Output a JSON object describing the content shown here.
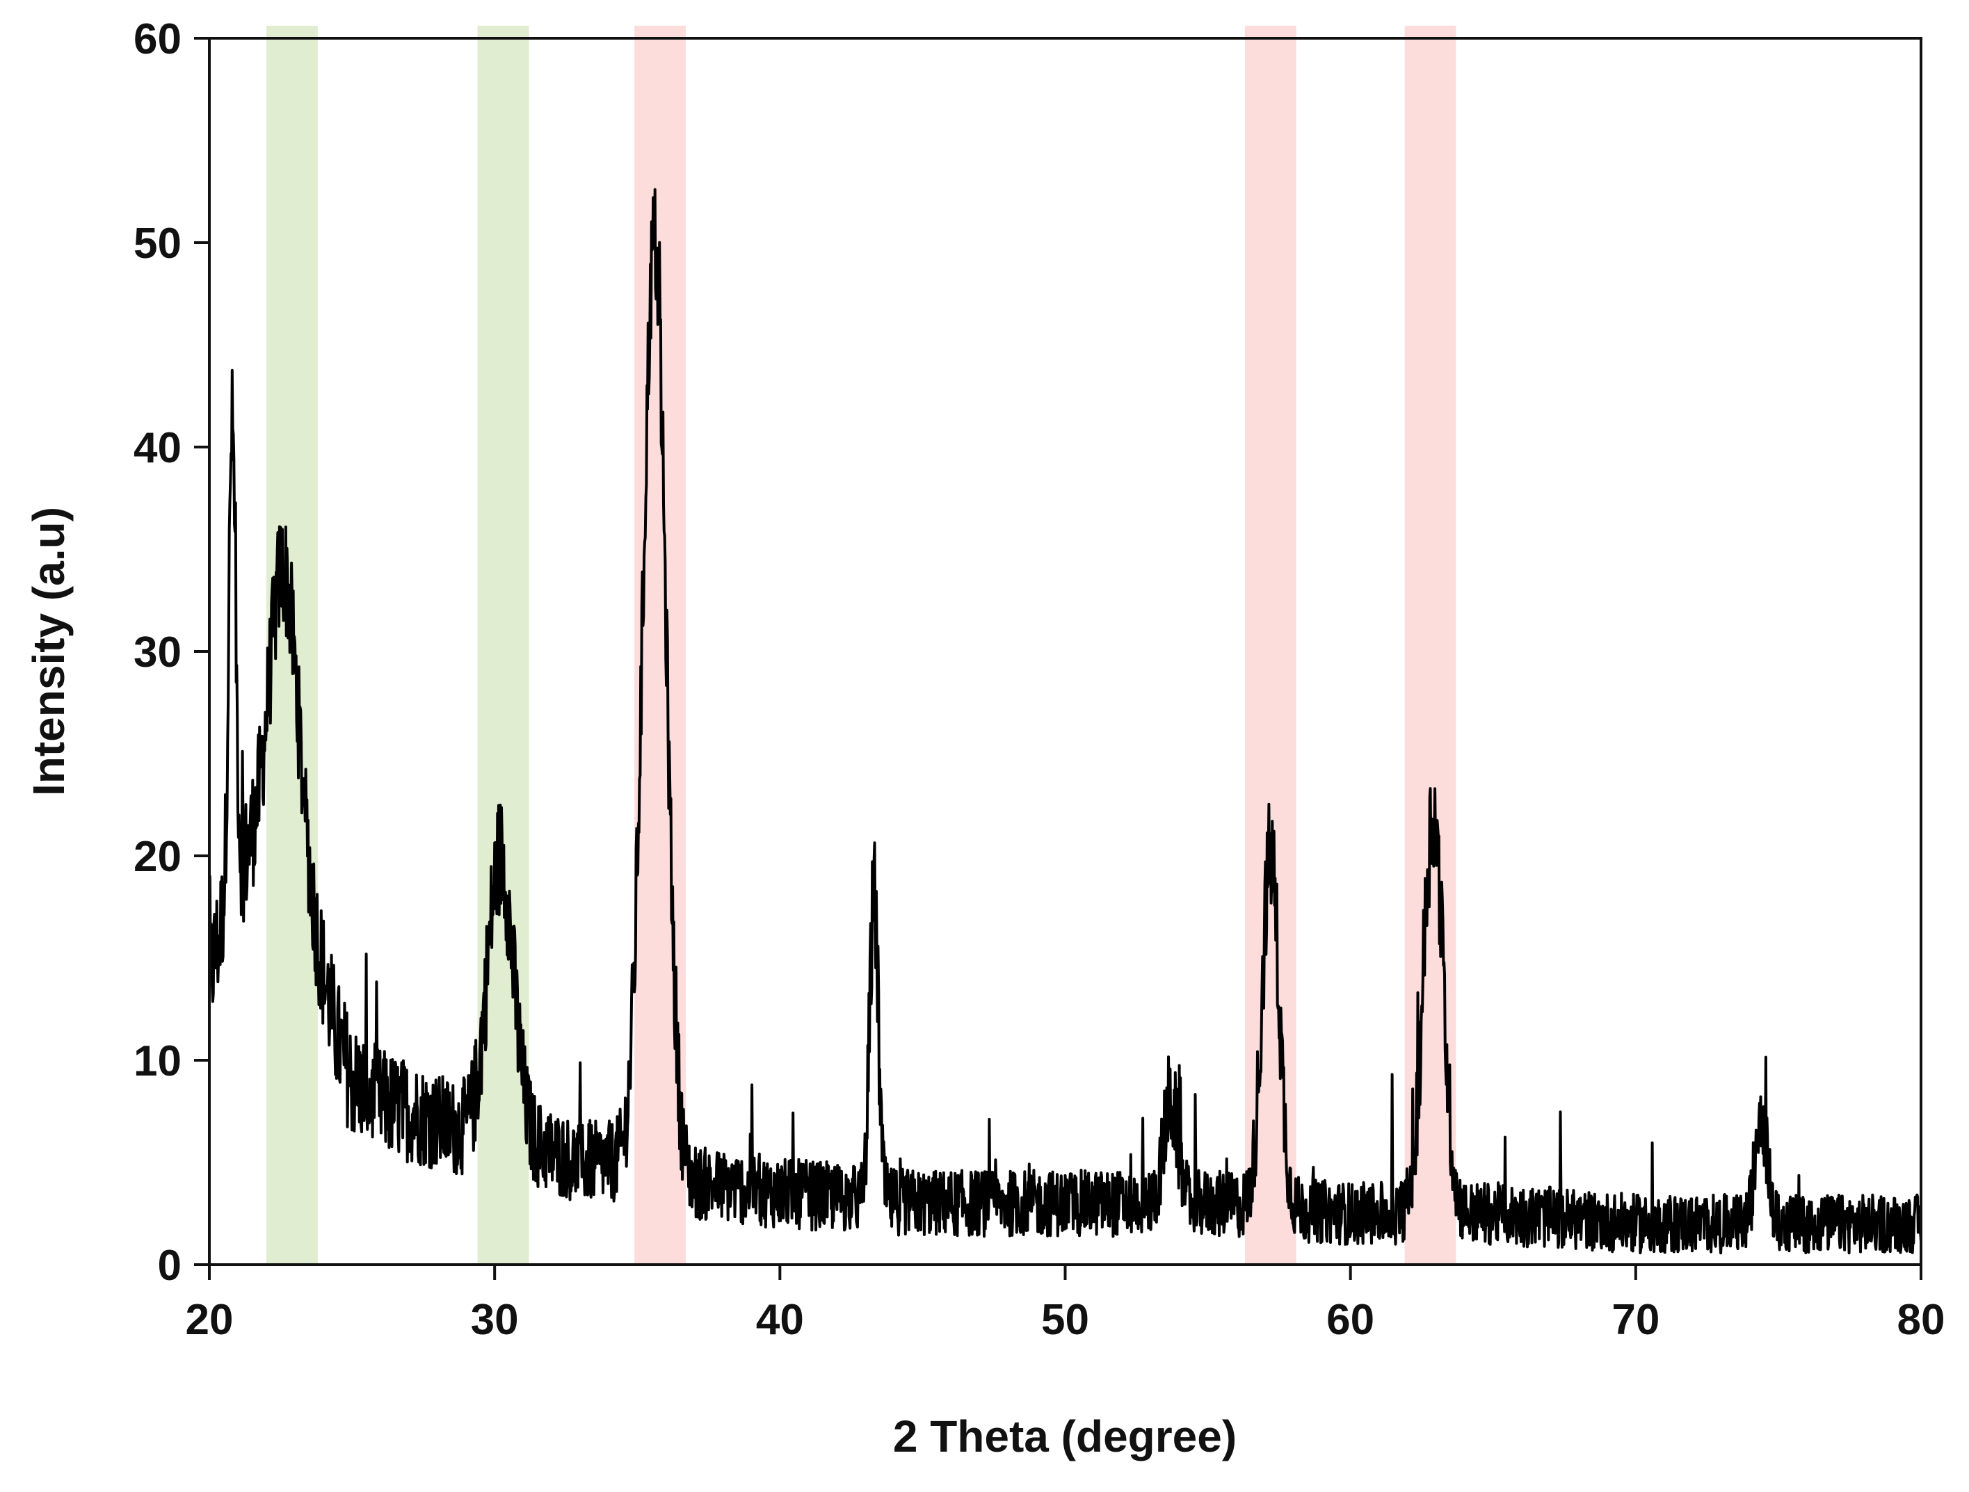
{
  "chart_data": {
    "type": "line",
    "title": "",
    "xlabel": "2 Theta (degree)",
    "ylabel": "Intensity (a.u)",
    "xlim": [
      20,
      80
    ],
    "ylim": [
      0,
      60
    ],
    "xticks": [
      "20",
      "30",
      "40",
      "50",
      "60",
      "70",
      "80"
    ],
    "yticks": [
      "0",
      "10",
      "20",
      "30",
      "40",
      "50",
      "60"
    ],
    "grid": false,
    "legend": "none",
    "series": [
      {
        "color": "#000000",
        "baseline": [
          [
            20,
            14
          ],
          [
            20.5,
            17
          ],
          [
            21,
            19
          ],
          [
            21.5,
            20
          ],
          [
            22,
            20
          ],
          [
            22.5,
            20
          ],
          [
            23,
            19
          ],
          [
            23.5,
            17
          ],
          [
            24,
            14
          ],
          [
            24.5,
            11
          ],
          [
            25,
            9
          ],
          [
            26,
            8
          ],
          [
            27,
            7.5
          ],
          [
            28,
            7
          ],
          [
            29,
            6.5
          ],
          [
            30,
            6
          ],
          [
            31,
            6
          ],
          [
            32,
            5.5
          ],
          [
            33,
            5
          ],
          [
            34,
            5
          ],
          [
            35,
            5
          ],
          [
            36,
            4.5
          ],
          [
            37,
            4
          ],
          [
            40,
            3.5
          ],
          [
            45,
            3
          ],
          [
            50,
            3
          ],
          [
            55,
            3
          ],
          [
            60,
            2.5
          ],
          [
            65,
            2.5
          ],
          [
            70,
            2
          ],
          [
            75,
            2
          ],
          [
            80,
            2
          ]
        ],
        "peaks": [
          {
            "x": 20.8,
            "y": 41,
            "width": 0.12
          },
          {
            "x": 22.6,
            "y": 34,
            "width": 0.5
          },
          {
            "x": 30.2,
            "y": 20,
            "width": 0.45
          },
          {
            "x": 35.6,
            "y": 50,
            "width": 0.4
          },
          {
            "x": 43.3,
            "y": 18,
            "width": 0.15
          },
          {
            "x": 53.7,
            "y": 8,
            "width": 0.25
          },
          {
            "x": 57.2,
            "y": 20,
            "width": 0.3
          },
          {
            "x": 62.9,
            "y": 22,
            "width": 0.35
          },
          {
            "x": 74.4,
            "y": 8,
            "width": 0.2
          }
        ],
        "noise_amplitude": 3
      }
    ],
    "highlight_bands": [
      {
        "x0": 22.0,
        "x1": 23.8,
        "color": "#d6e7c0"
      },
      {
        "x0": 29.4,
        "x1": 31.2,
        "color": "#d6e7c0"
      },
      {
        "x0": 34.9,
        "x1": 36.7,
        "color": "#fbd2d0"
      },
      {
        "x0": 56.3,
        "x1": 58.1,
        "color": "#fbd2d0"
      },
      {
        "x0": 61.9,
        "x1": 63.7,
        "color": "#fbd2d0"
      }
    ]
  }
}
